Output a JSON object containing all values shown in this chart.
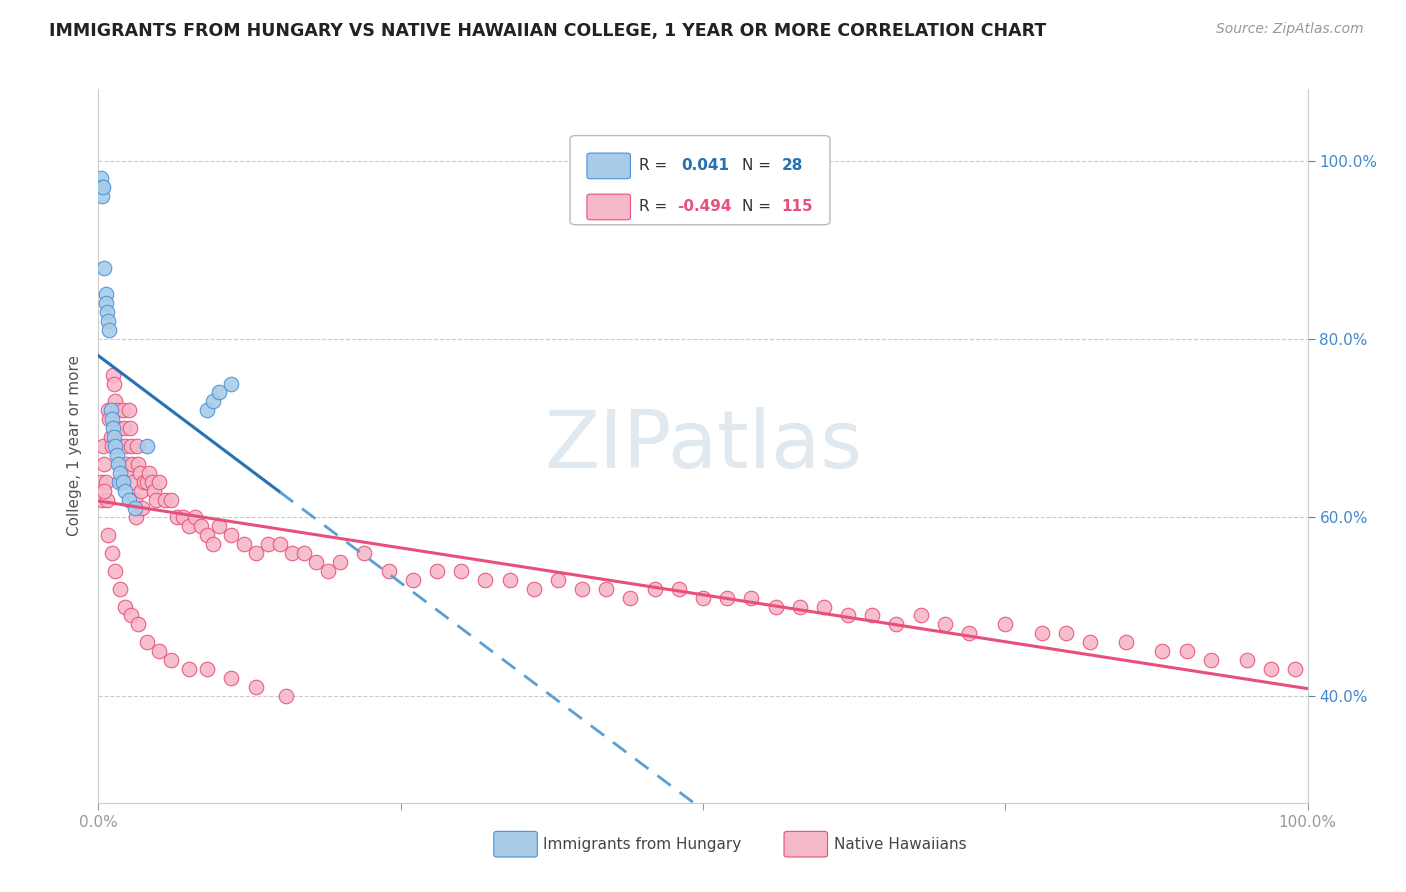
{
  "title": "IMMIGRANTS FROM HUNGARY VS NATIVE HAWAIIAN COLLEGE, 1 YEAR OR MORE CORRELATION CHART",
  "source": "Source: ZipAtlas.com",
  "ylabel": "College, 1 year or more",
  "xlim": [
    0.0,
    1.0
  ],
  "ylim": [
    0.28,
    1.08
  ],
  "ytick_right": [
    0.4,
    0.6,
    0.8,
    1.0
  ],
  "ytick_right_labels": [
    "40.0%",
    "60.0%",
    "80.0%",
    "100.0%"
  ],
  "watermark": "ZIPatlas",
  "blue_color": "#a8cce8",
  "blue_edge": "#4a90d9",
  "pink_color": "#f5b8c8",
  "pink_edge": "#e8507a",
  "trendline_blue_solid": "#2471b5",
  "trendline_blue_dash": "#5a9fd4",
  "trendline_pink": "#e8507a",
  "legend_r_blue": "0.041",
  "legend_n_blue": "28",
  "legend_r_pink": "-0.494",
  "legend_n_pink": "115",
  "blue_x": [
    0.002,
    0.003,
    0.003,
    0.004,
    0.005,
    0.006,
    0.006,
    0.007,
    0.008,
    0.009,
    0.01,
    0.011,
    0.012,
    0.013,
    0.014,
    0.015,
    0.016,
    0.017,
    0.018,
    0.02,
    0.022,
    0.025,
    0.03,
    0.04,
    0.09,
    0.095,
    0.1,
    0.11
  ],
  "blue_y": [
    0.98,
    0.97,
    0.96,
    0.97,
    0.88,
    0.85,
    0.84,
    0.83,
    0.82,
    0.81,
    0.72,
    0.71,
    0.7,
    0.69,
    0.68,
    0.67,
    0.66,
    0.64,
    0.65,
    0.64,
    0.63,
    0.62,
    0.61,
    0.68,
    0.72,
    0.73,
    0.74,
    0.75
  ],
  "pink_x": [
    0.002,
    0.003,
    0.004,
    0.005,
    0.006,
    0.007,
    0.008,
    0.009,
    0.01,
    0.011,
    0.012,
    0.013,
    0.014,
    0.015,
    0.016,
    0.017,
    0.018,
    0.019,
    0.02,
    0.021,
    0.022,
    0.023,
    0.024,
    0.025,
    0.026,
    0.027,
    0.028,
    0.029,
    0.03,
    0.031,
    0.032,
    0.033,
    0.034,
    0.035,
    0.036,
    0.038,
    0.04,
    0.042,
    0.044,
    0.046,
    0.048,
    0.05,
    0.055,
    0.06,
    0.065,
    0.07,
    0.075,
    0.08,
    0.085,
    0.09,
    0.095,
    0.1,
    0.11,
    0.12,
    0.13,
    0.14,
    0.15,
    0.16,
    0.17,
    0.18,
    0.19,
    0.2,
    0.22,
    0.24,
    0.26,
    0.28,
    0.3,
    0.32,
    0.34,
    0.36,
    0.38,
    0.4,
    0.42,
    0.44,
    0.46,
    0.48,
    0.5,
    0.52,
    0.54,
    0.56,
    0.58,
    0.6,
    0.62,
    0.64,
    0.66,
    0.68,
    0.7,
    0.72,
    0.75,
    0.78,
    0.8,
    0.82,
    0.85,
    0.88,
    0.9,
    0.92,
    0.95,
    0.97,
    0.99,
    0.005,
    0.008,
    0.011,
    0.014,
    0.018,
    0.022,
    0.027,
    0.033,
    0.04,
    0.05,
    0.06,
    0.075,
    0.09,
    0.11,
    0.13,
    0.155
  ],
  "pink_y": [
    0.64,
    0.62,
    0.68,
    0.66,
    0.64,
    0.62,
    0.72,
    0.71,
    0.69,
    0.68,
    0.76,
    0.75,
    0.73,
    0.72,
    0.7,
    0.68,
    0.66,
    0.64,
    0.72,
    0.7,
    0.68,
    0.66,
    0.65,
    0.72,
    0.7,
    0.68,
    0.66,
    0.64,
    0.62,
    0.6,
    0.68,
    0.66,
    0.65,
    0.63,
    0.61,
    0.64,
    0.64,
    0.65,
    0.64,
    0.63,
    0.62,
    0.64,
    0.62,
    0.62,
    0.6,
    0.6,
    0.59,
    0.6,
    0.59,
    0.58,
    0.57,
    0.59,
    0.58,
    0.57,
    0.56,
    0.57,
    0.57,
    0.56,
    0.56,
    0.55,
    0.54,
    0.55,
    0.56,
    0.54,
    0.53,
    0.54,
    0.54,
    0.53,
    0.53,
    0.52,
    0.53,
    0.52,
    0.52,
    0.51,
    0.52,
    0.52,
    0.51,
    0.51,
    0.51,
    0.5,
    0.5,
    0.5,
    0.49,
    0.49,
    0.48,
    0.49,
    0.48,
    0.47,
    0.48,
    0.47,
    0.47,
    0.46,
    0.46,
    0.45,
    0.45,
    0.44,
    0.44,
    0.43,
    0.43,
    0.63,
    0.58,
    0.56,
    0.54,
    0.52,
    0.5,
    0.49,
    0.48,
    0.46,
    0.45,
    0.44,
    0.43,
    0.43,
    0.42,
    0.41,
    0.4
  ]
}
